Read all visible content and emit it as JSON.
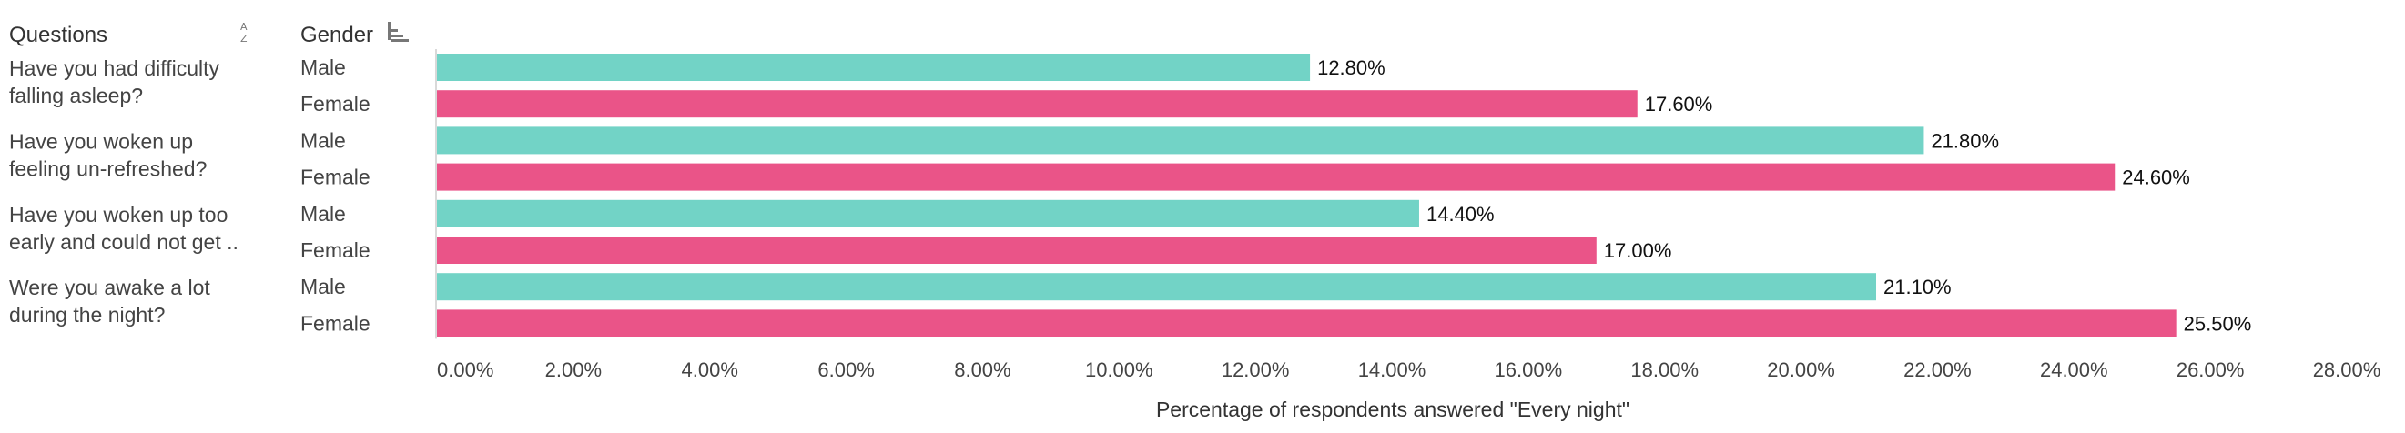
{
  "header": {
    "questions_label": "Questions",
    "gender_label": "Gender",
    "sort_az_icon": "sort-alpha-icon",
    "sort_bars_icon": "sort-bars-icon"
  },
  "colors": {
    "male": "#72d3c6",
    "female": "#ea5488",
    "axis": "#d9d9d9"
  },
  "chart_data": {
    "type": "bar",
    "orientation": "horizontal",
    "xlabel": "Percentage of respondents answered \"Every night\"",
    "xlim": [
      0,
      28
    ],
    "ticks": [
      "0.00%",
      "2.00%",
      "4.00%",
      "6.00%",
      "8.00%",
      "10.00%",
      "12.00%",
      "14.00%",
      "16.00%",
      "18.00%",
      "20.00%",
      "22.00%",
      "24.00%",
      "26.00%",
      "28.00%"
    ],
    "groups": [
      {
        "question_lines": [
          "Have you had difficulty",
          "falling asleep?"
        ],
        "bars": [
          {
            "gender": "Male",
            "value": 12.8,
            "label": "12.80%"
          },
          {
            "gender": "Female",
            "value": 17.6,
            "label": "17.60%"
          }
        ]
      },
      {
        "question_lines": [
          "Have you woken up",
          "feeling un-refreshed?"
        ],
        "bars": [
          {
            "gender": "Male",
            "value": 21.8,
            "label": "21.80%"
          },
          {
            "gender": "Female",
            "value": 24.6,
            "label": "24.60%"
          }
        ]
      },
      {
        "question_lines": [
          "Have you woken up too",
          "early and could not get .."
        ],
        "bars": [
          {
            "gender": "Male",
            "value": 14.4,
            "label": "14.40%"
          },
          {
            "gender": "Female",
            "value": 17.0,
            "label": "17.00%"
          }
        ]
      },
      {
        "question_lines": [
          "Were you awake a lot",
          "during the night?"
        ],
        "bars": [
          {
            "gender": "Male",
            "value": 21.1,
            "label": "21.10%"
          },
          {
            "gender": "Female",
            "value": 25.5,
            "label": "25.50%"
          }
        ]
      }
    ]
  }
}
